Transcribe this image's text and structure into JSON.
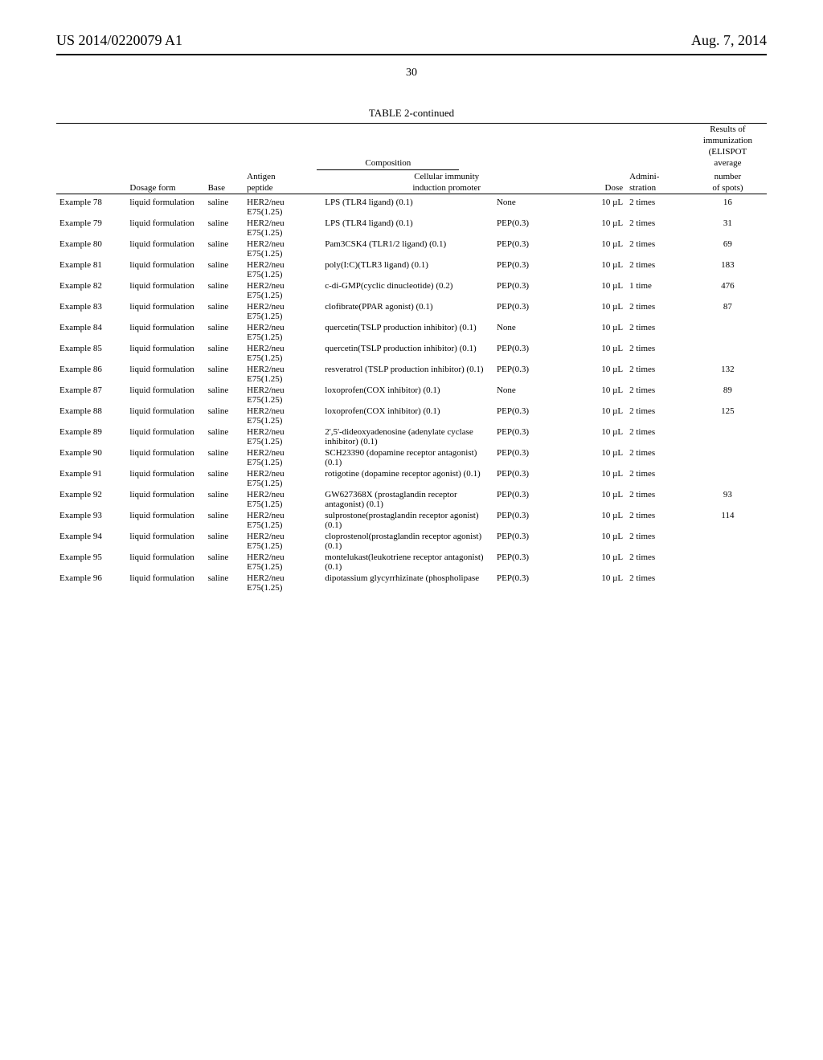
{
  "header": {
    "patent_number": "US 2014/0220079 A1",
    "date": "Aug. 7, 2014",
    "page_number": "30"
  },
  "table": {
    "caption": "TABLE 2-continued",
    "header_group_composition": "Composition",
    "header": {
      "dosage_form": "Dosage form",
      "base": "Base",
      "antigen_peptide_top": "Antigen",
      "antigen_peptide_bottom": "peptide",
      "cellular_top": "Cellular immunity",
      "cellular_bottom": "induction promoter",
      "dose": "Dose",
      "administration_top": "Admini-",
      "administration_bottom": "stration",
      "results_l1": "Results of",
      "results_l2": "immunization",
      "results_l3": "(ELISPOT",
      "results_l4": "average",
      "results_l5": "number",
      "results_l6": "of spots)"
    },
    "rows": [
      {
        "example": "Example 78",
        "dosage": "liquid formulation",
        "base": "saline",
        "antigen": "HER2/neu E75(1.25)",
        "promoter": "LPS (TLR4 ligand) (0.1)",
        "promoter2": "None",
        "dose": "10 µL",
        "admin": "2 times",
        "result": "16"
      },
      {
        "example": "Example 79",
        "dosage": "liquid formulation",
        "base": "saline",
        "antigen": "HER2/neu E75(1.25)",
        "promoter": "LPS (TLR4 ligand) (0.1)",
        "promoter2": "PEP(0.3)",
        "dose": "10 µL",
        "admin": "2 times",
        "result": "31"
      },
      {
        "example": "Example 80",
        "dosage": "liquid formulation",
        "base": "saline",
        "antigen": "HER2/neu E75(1.25)",
        "promoter": "Pam3CSK4 (TLR1/2 ligand) (0.1)",
        "promoter2": "PEP(0.3)",
        "dose": "10 µL",
        "admin": "2 times",
        "result": "69"
      },
      {
        "example": "Example 81",
        "dosage": "liquid formulation",
        "base": "saline",
        "antigen": "HER2/neu E75(1.25)",
        "promoter": "poly(I:C)(TLR3 ligand) (0.1)",
        "promoter2": "PEP(0.3)",
        "dose": "10 µL",
        "admin": "2 times",
        "result": "183"
      },
      {
        "example": "Example 82",
        "dosage": "liquid formulation",
        "base": "saline",
        "antigen": "HER2/neu E75(1.25)",
        "promoter": "c-di-GMP(cyclic dinucleotide) (0.2)",
        "promoter2": "PEP(0.3)",
        "dose": "10 µL",
        "admin": "1 time",
        "result": "476"
      },
      {
        "example": "Example 83",
        "dosage": "liquid formulation",
        "base": "saline",
        "antigen": "HER2/neu E75(1.25)",
        "promoter": "clofibrate(PPAR agonist) (0.1)",
        "promoter2": "PEP(0.3)",
        "dose": "10 µL",
        "admin": "2 times",
        "result": "87"
      },
      {
        "example": "Example 84",
        "dosage": "liquid formulation",
        "base": "saline",
        "antigen": "HER2/neu E75(1.25)",
        "promoter": "quercetin(TSLP production inhibitor) (0.1)",
        "promoter2": "None",
        "dose": "10 µL",
        "admin": "2 times",
        "result": ""
      },
      {
        "example": "Example 85",
        "dosage": "liquid formulation",
        "base": "saline",
        "antigen": "HER2/neu E75(1.25)",
        "promoter": "quercetin(TSLP production inhibitor) (0.1)",
        "promoter2": "PEP(0.3)",
        "dose": "10 µL",
        "admin": "2 times",
        "result": ""
      },
      {
        "example": "Example 86",
        "dosage": "liquid formulation",
        "base": "saline",
        "antigen": "HER2/neu E75(1.25)",
        "promoter": "resveratrol (TSLP production inhibitor) (0.1)",
        "promoter2": "PEP(0.3)",
        "dose": "10 µL",
        "admin": "2 times",
        "result": "132"
      },
      {
        "example": "Example 87",
        "dosage": "liquid formulation",
        "base": "saline",
        "antigen": "HER2/neu E75(1.25)",
        "promoter": "loxoprofen(COX inhibitor) (0.1)",
        "promoter2": "None",
        "dose": "10 µL",
        "admin": "2 times",
        "result": "89"
      },
      {
        "example": "Example 88",
        "dosage": "liquid formulation",
        "base": "saline",
        "antigen": "HER2/neu E75(1.25)",
        "promoter": "loxoprofen(COX inhibitor) (0.1)",
        "promoter2": "PEP(0.3)",
        "dose": "10 µL",
        "admin": "2 times",
        "result": "125"
      },
      {
        "example": "Example 89",
        "dosage": "liquid formulation",
        "base": "saline",
        "antigen": "HER2/neu E75(1.25)",
        "promoter": "2',5'-dideoxyadenosine (adenylate cyclase inhibitor) (0.1)",
        "promoter2": "PEP(0.3)",
        "dose": "10 µL",
        "admin": "2 times",
        "result": ""
      },
      {
        "example": "Example 90",
        "dosage": "liquid formulation",
        "base": "saline",
        "antigen": "HER2/neu E75(1.25)",
        "promoter": "SCH23390 (dopamine receptor antagonist) (0.1)",
        "promoter2": "PEP(0.3)",
        "dose": "10 µL",
        "admin": "2 times",
        "result": ""
      },
      {
        "example": "Example 91",
        "dosage": "liquid formulation",
        "base": "saline",
        "antigen": "HER2/neu E75(1.25)",
        "promoter": "rotigotine (dopamine receptor agonist) (0.1)",
        "promoter2": "PEP(0.3)",
        "dose": "10 µL",
        "admin": "2 times",
        "result": ""
      },
      {
        "example": "Example 92",
        "dosage": "liquid formulation",
        "base": "saline",
        "antigen": "HER2/neu E75(1.25)",
        "promoter": "GW627368X (prostaglandin receptor antagonist) (0.1)",
        "promoter2": "PEP(0.3)",
        "dose": "10 µL",
        "admin": "2 times",
        "result": "93"
      },
      {
        "example": "Example 93",
        "dosage": "liquid formulation",
        "base": "saline",
        "antigen": "HER2/neu E75(1.25)",
        "promoter": "sulprostone(prostaglandin receptor agonist) (0.1)",
        "promoter2": "PEP(0.3)",
        "dose": "10 µL",
        "admin": "2 times",
        "result": "114"
      },
      {
        "example": "Example 94",
        "dosage": "liquid formulation",
        "base": "saline",
        "antigen": "HER2/neu E75(1.25)",
        "promoter": "cloprostenol(prostaglandin receptor agonist) (0.1)",
        "promoter2": "PEP(0.3)",
        "dose": "10 µL",
        "admin": "2 times",
        "result": ""
      },
      {
        "example": "Example 95",
        "dosage": "liquid formulation",
        "base": "saline",
        "antigen": "HER2/neu E75(1.25)",
        "promoter": "montelukast(leukotriene receptor antagonist) (0.1)",
        "promoter2": "PEP(0.3)",
        "dose": "10 µL",
        "admin": "2 times",
        "result": ""
      },
      {
        "example": "Example 96",
        "dosage": "liquid formulation",
        "base": "saline",
        "antigen": "HER2/neu E75(1.25)",
        "promoter": "dipotassium glycyrrhizinate (phospholipase",
        "promoter2": "PEP(0.3)",
        "dose": "10 µL",
        "admin": "2 times",
        "result": ""
      }
    ]
  }
}
